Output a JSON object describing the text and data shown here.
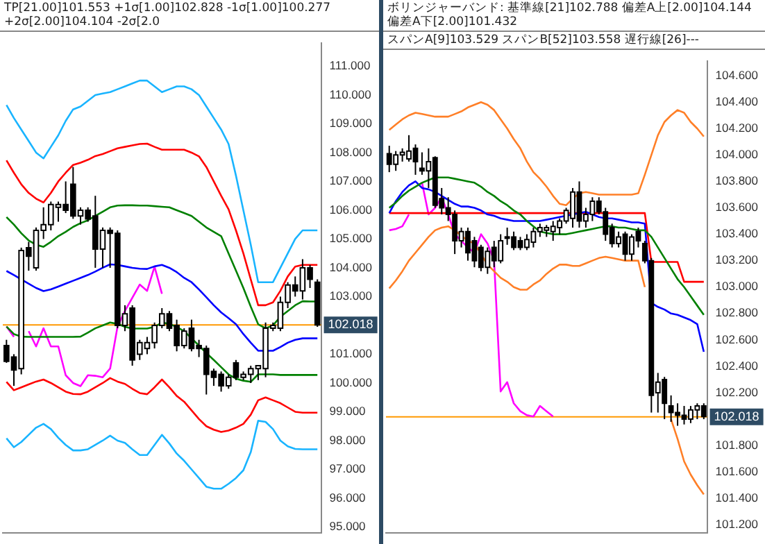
{
  "chart_data": [
    {
      "type": "candlestick",
      "title": "TP[21.00]101.553 +1σ[1.00]102.828 -1σ[1.00]100.277 +2σ[2.00]104.104 -2σ[2.0",
      "tick_labels": "y",
      "grid": false,
      "legend": false,
      "marker": "none",
      "categories": [
        null,
        null,
        null,
        null,
        null,
        null,
        null,
        null,
        null,
        null,
        null,
        null,
        null,
        null,
        null,
        null,
        null,
        null,
        null,
        null,
        null,
        null,
        null,
        null,
        null,
        null,
        null,
        null,
        null,
        null,
        null,
        null,
        null,
        null,
        null,
        null,
        null,
        null,
        null,
        null,
        null,
        null,
        null
      ],
      "ohlc": [
        [
          101.3,
          101.5,
          100.7,
          100.75
        ],
        [
          100.9,
          101.0,
          99.9,
          100.45
        ],
        [
          100.5,
          104.7,
          100.3,
          104.6
        ],
        [
          104.7,
          104.9,
          103.9,
          104.4
        ],
        [
          104.0,
          105.4,
          103.9,
          105.3
        ],
        [
          105.3,
          106.1,
          105.0,
          105.5
        ],
        [
          105.5,
          106.3,
          105.3,
          106.2
        ],
        [
          106.1,
          106.3,
          105.6,
          106.2
        ],
        [
          106.2,
          107.0,
          105.9,
          106.0
        ],
        [
          106.9,
          107.5,
          105.7,
          105.8
        ],
        [
          105.8,
          106.1,
          105.5,
          106.0
        ],
        [
          106.0,
          106.1,
          105.6,
          105.7
        ],
        [
          105.8,
          106.5,
          104.0,
          104.65
        ],
        [
          104.65,
          105.4,
          104.0,
          105.3
        ],
        [
          105.3,
          105.4,
          104.0,
          105.2
        ],
        [
          105.2,
          105.3,
          101.9,
          102.0
        ],
        [
          102.0,
          102.7,
          101.8,
          102.4
        ],
        [
          102.6,
          102.7,
          100.6,
          100.8
        ],
        [
          101.0,
          101.5,
          100.8,
          101.4
        ],
        [
          101.2,
          101.6,
          101.0,
          101.4
        ],
        [
          101.4,
          102.1,
          101.2,
          102.0
        ],
        [
          102.0,
          102.6,
          101.9,
          102.4
        ],
        [
          102.4,
          102.5,
          101.8,
          101.9
        ],
        [
          102.0,
          102.2,
          101.1,
          101.3
        ],
        [
          101.3,
          101.9,
          101.2,
          101.8
        ],
        [
          101.9,
          102.2,
          101.1,
          101.2
        ],
        [
          101.3,
          101.5,
          100.9,
          101.2
        ],
        [
          101.2,
          101.3,
          99.6,
          100.3
        ],
        [
          100.4,
          100.5,
          99.9,
          100.2
        ],
        [
          100.3,
          100.4,
          99.7,
          99.9
        ],
        [
          99.9,
          100.3,
          99.8,
          100.2
        ],
        [
          100.7,
          100.8,
          100.1,
          100.2
        ],
        [
          100.2,
          100.4,
          100.1,
          100.3
        ],
        [
          100.3,
          100.6,
          100.0,
          100.5
        ],
        [
          100.5,
          100.6,
          100.1,
          100.6
        ],
        [
          100.5,
          102.1,
          100.2,
          101.9
        ],
        [
          101.9,
          102.1,
          101.8,
          102.0
        ],
        [
          101.9,
          103.0,
          101.8,
          102.8
        ],
        [
          102.8,
          103.5,
          102.6,
          103.4
        ],
        [
          103.4,
          103.7,
          103.0,
          103.2
        ],
        [
          103.2,
          104.3,
          102.9,
          104.0
        ],
        [
          104.0,
          104.1,
          103.3,
          103.6
        ],
        [
          103.5,
          103.6,
          101.95,
          102.02
        ]
      ],
      "series": [
        {
          "type": "line",
          "color": "#19b4ff",
          "values": [
            109.65,
            109.2,
            108.8,
            108.4,
            108.0,
            107.8,
            108.2,
            108.6,
            109.1,
            109.5,
            109.6,
            109.8,
            110.0,
            110.05,
            110.1,
            110.2,
            110.3,
            110.4,
            110.5,
            110.5,
            110.3,
            110.1,
            110.2,
            110.3,
            110.3,
            110.2,
            110.0,
            109.6,
            109.2,
            108.8,
            108.3,
            107.2,
            106.0,
            104.8,
            103.5,
            103.5,
            103.5,
            104.0,
            104.5,
            105.0,
            105.3,
            105.3,
            105.3
          ]
        },
        {
          "type": "line",
          "color": "#ff0000",
          "values": [
            107.73,
            107.3,
            106.9,
            106.6,
            106.4,
            106.27,
            106.6,
            107.0,
            107.3,
            107.57,
            107.65,
            107.75,
            107.88,
            107.95,
            108.05,
            108.15,
            108.2,
            108.25,
            108.3,
            108.31,
            108.2,
            108.1,
            108.1,
            108.1,
            108.1,
            108.0,
            107.87,
            107.5,
            107.0,
            106.5,
            106.03,
            105.3,
            104.5,
            103.6,
            102.7,
            102.7,
            102.8,
            103.2,
            103.7,
            104.04,
            104.1,
            104.1,
            104.1
          ]
        },
        {
          "type": "line",
          "color": "#008000",
          "values": [
            105.76,
            105.5,
            105.2,
            104.95,
            104.8,
            104.73,
            104.9,
            105.1,
            105.25,
            105.42,
            105.55,
            105.65,
            105.8,
            105.95,
            106.1,
            106.16,
            106.17,
            106.17,
            106.16,
            106.16,
            106.14,
            106.12,
            106.1,
            106.0,
            105.9,
            105.8,
            105.6,
            105.4,
            105.25,
            105.1,
            104.5,
            103.9,
            103.3,
            102.65,
            102.04,
            101.9,
            102.0,
            102.3,
            102.5,
            102.7,
            102.84,
            102.83,
            102.83
          ]
        },
        {
          "type": "line",
          "color": "#0000ff",
          "values": [
            103.89,
            103.75,
            103.6,
            103.45,
            103.3,
            103.19,
            103.25,
            103.35,
            103.45,
            103.55,
            103.65,
            103.75,
            103.87,
            104.0,
            104.12,
            104.1,
            104.05,
            104.0,
            103.97,
            103.96,
            104.05,
            104.1,
            104.0,
            103.85,
            103.65,
            103.5,
            103.25,
            102.98,
            102.7,
            102.45,
            102.25,
            102.04,
            101.7,
            101.4,
            101.12,
            101.12,
            101.12,
            101.25,
            101.4,
            101.5,
            101.55,
            101.55,
            101.55
          ]
        },
        {
          "type": "line",
          "color": "#008000",
          "values": [
            101.96,
            101.7,
            101.61,
            101.6,
            101.6,
            101.6,
            101.6,
            101.6,
            101.6,
            101.6,
            101.61,
            101.75,
            101.9,
            102.0,
            102.1,
            102.05,
            101.95,
            101.89,
            101.89,
            101.89,
            101.95,
            102.1,
            102.05,
            101.95,
            101.8,
            101.55,
            101.3,
            101.04,
            100.8,
            100.55,
            100.3,
            100.15,
            100.08,
            100.04,
            100.3,
            100.3,
            100.3,
            100.28,
            100.28,
            100.28,
            100.28,
            100.28,
            100.28
          ]
        },
        {
          "type": "line",
          "color": "#ff0000",
          "values": [
            100.04,
            99.75,
            99.85,
            99.95,
            100.05,
            100.12,
            100.0,
            99.85,
            99.7,
            99.62,
            99.61,
            99.7,
            99.85,
            100.0,
            100.17,
            100.05,
            99.97,
            99.8,
            99.65,
            99.61,
            99.85,
            100.12,
            99.85,
            99.55,
            99.35,
            99.05,
            98.75,
            98.5,
            98.38,
            98.3,
            98.35,
            98.45,
            98.58,
            98.9,
            99.4,
            99.5,
            99.4,
            99.3,
            99.15,
            99.0,
            98.97,
            98.97,
            98.97
          ]
        },
        {
          "type": "line",
          "color": "#19b4ff",
          "values": [
            98.08,
            97.77,
            97.95,
            98.2,
            98.45,
            98.58,
            98.4,
            98.1,
            97.85,
            97.66,
            97.66,
            97.7,
            97.85,
            98.0,
            98.17,
            98.0,
            97.92,
            97.7,
            97.5,
            97.5,
            97.85,
            98.2,
            97.9,
            97.55,
            97.3,
            97.0,
            96.7,
            96.4,
            96.33,
            96.33,
            96.5,
            96.7,
            96.97,
            97.6,
            98.69,
            98.65,
            98.4,
            98.0,
            97.8,
            97.71,
            97.7,
            97.7,
            97.7
          ]
        },
        {
          "type": "line",
          "color": "#ff00ff",
          "values": [
            101.96,
            101.6,
            null,
            101.8,
            101.27,
            101.9,
            101.27,
            101.27,
            100.27,
            100.0,
            99.89,
            100.27,
            100.25,
            100.2,
            100.5,
            101.96,
            102.5,
            102.96,
            103.42,
            103.2,
            104.04,
            103.1,
            null,
            null,
            null,
            null,
            null,
            null,
            null,
            null,
            null,
            null,
            null,
            null,
            null,
            null,
            null,
            null,
            null,
            null,
            null,
            null,
            null
          ]
        }
      ],
      "ylim": [
        94.8,
        111.8
      ],
      "yticks": [
        {
          "value": 95,
          "label": "95.000"
        },
        {
          "value": 96,
          "label": "96.000"
        },
        {
          "value": 97,
          "label": "97.000"
        },
        {
          "value": 98,
          "label": "98.000"
        },
        {
          "value": 99,
          "label": "99.000"
        },
        {
          "value": 100,
          "label": "100.000"
        },
        {
          "value": 101,
          "label": "101.000"
        },
        {
          "value": 103,
          "label": "103.000"
        },
        {
          "value": 104,
          "label": "104.000"
        },
        {
          "value": 105,
          "label": "105.000"
        },
        {
          "value": 106,
          "label": "106.000"
        },
        {
          "value": 107,
          "label": "107.000"
        },
        {
          "value": 108,
          "label": "108.000"
        },
        {
          "value": 109,
          "label": "109.000"
        },
        {
          "value": 110,
          "label": "110.000"
        },
        {
          "value": 111,
          "label": "111.000"
        }
      ],
      "ref_lines": [
        {
          "axis": "y",
          "value": 102.018,
          "label": "102.018",
          "color": "#ff9900"
        }
      ]
    },
    {
      "type": "candlestick",
      "title": "ボリンジャーバンド: 基準線[21]102.788 偏差A上[2.00]104.144 偏差A下[2.00]101.432",
      "subtitle": "スパンA[9]103.529 スパンB[52]103.558 遅行線[26]---",
      "tick_labels": "y",
      "grid": false,
      "legend": false,
      "marker": "none",
      "categories": [
        null,
        null,
        null,
        null,
        null,
        null,
        null,
        null,
        null,
        null,
        null,
        null,
        null,
        null,
        null,
        null,
        null,
        null,
        null,
        null,
        null,
        null,
        null,
        null,
        null,
        null,
        null,
        null,
        null,
        null,
        null,
        null,
        null,
        null,
        null,
        null,
        null,
        null,
        null,
        null,
        null,
        null,
        null,
        null,
        null,
        null,
        null,
        null,
        null
      ],
      "ohlc": [
        [
          104.01,
          104.07,
          103.87,
          103.93
        ],
        [
          103.93,
          104.03,
          103.88,
          104.0
        ],
        [
          104.0,
          104.05,
          103.95,
          104.02
        ],
        [
          103.97,
          104.15,
          103.95,
          104.03
        ],
        [
          104.05,
          104.08,
          103.85,
          103.95
        ],
        [
          103.9,
          104.02,
          103.85,
          103.88
        ],
        [
          103.88,
          104.05,
          103.75,
          103.95
        ],
        [
          103.98,
          103.99,
          103.6,
          103.62
        ],
        [
          103.67,
          103.75,
          103.55,
          103.6
        ],
        [
          103.6,
          103.68,
          103.5,
          103.55
        ],
        [
          103.55,
          103.58,
          103.25,
          103.35
        ],
        [
          103.35,
          103.45,
          103.3,
          103.42
        ],
        [
          103.42,
          103.45,
          103.2,
          103.26
        ],
        [
          103.35,
          103.38,
          103.15,
          103.2
        ],
        [
          103.3,
          103.32,
          103.12,
          103.15
        ],
        [
          103.15,
          103.3,
          103.1,
          103.27
        ],
        [
          103.3,
          103.35,
          103.15,
          103.2
        ],
        [
          103.2,
          103.4,
          103.18,
          103.35
        ],
        [
          103.37,
          103.45,
          103.32,
          103.38
        ],
        [
          103.38,
          103.42,
          103.28,
          103.3
        ],
        [
          103.35,
          103.38,
          103.28,
          103.3
        ],
        [
          103.3,
          103.4,
          103.28,
          103.36
        ],
        [
          103.34,
          103.45,
          103.3,
          103.42
        ],
        [
          103.42,
          103.48,
          103.38,
          103.45
        ],
        [
          103.43,
          103.47,
          103.38,
          103.45
        ],
        [
          103.42,
          103.5,
          103.35,
          103.46
        ],
        [
          103.45,
          103.52,
          103.4,
          103.5
        ],
        [
          103.5,
          103.6,
          103.48,
          103.58
        ],
        [
          103.52,
          103.75,
          103.45,
          103.72
        ],
        [
          103.72,
          103.8,
          103.45,
          103.5
        ],
        [
          103.5,
          103.6,
          103.45,
          103.55
        ],
        [
          103.55,
          103.68,
          103.5,
          103.65
        ],
        [
          103.65,
          103.68,
          103.55,
          103.57
        ],
        [
          103.57,
          103.6,
          103.35,
          103.4
        ],
        [
          103.45,
          103.48,
          103.3,
          103.33
        ],
        [
          103.33,
          103.42,
          103.3,
          103.38
        ],
        [
          103.4,
          103.42,
          103.2,
          103.25
        ],
        [
          103.25,
          103.4,
          103.2,
          103.38
        ],
        [
          103.42,
          103.45,
          103.3,
          103.35
        ],
        [
          103.33,
          103.35,
          103.18,
          103.2
        ],
        [
          103.2,
          103.22,
          102.05,
          102.18
        ],
        [
          102.2,
          102.35,
          102.05,
          102.28
        ],
        [
          102.3,
          102.32,
          102.0,
          102.12
        ],
        [
          102.1,
          102.18,
          101.98,
          102.05
        ],
        [
          102.05,
          102.12,
          101.95,
          102.03
        ],
        [
          102.03,
          102.1,
          101.96,
          102.0
        ],
        [
          102.0,
          102.1,
          101.97,
          102.07
        ],
        [
          102.07,
          102.12,
          102.0,
          102.1
        ],
        [
          102.1,
          102.12,
          102.0,
          102.02
        ]
      ],
      "series": [
        {
          "type": "line",
          "color": "#ff7f27",
          "values": [
            104.19,
            104.23,
            104.27,
            104.3,
            104.32,
            104.31,
            104.3,
            104.29,
            104.29,
            104.29,
            104.31,
            104.33,
            104.36,
            104.38,
            104.4,
            104.38,
            104.34,
            104.27,
            104.2,
            104.12,
            104.05,
            103.95,
            103.87,
            103.82,
            103.76,
            103.69,
            103.63,
            103.62,
            103.67,
            103.71,
            103.72,
            103.71,
            103.7,
            103.7,
            103.7,
            103.7,
            103.7,
            103.7,
            103.71,
            103.85,
            104.0,
            104.15,
            104.25,
            104.3,
            104.34,
            104.32,
            104.25,
            104.2,
            104.14
          ]
        },
        {
          "type": "line",
          "color": "#ff7f27",
          "values": [
            102.99,
            103.05,
            103.12,
            103.2,
            103.26,
            103.32,
            103.38,
            103.43,
            103.45,
            103.46,
            103.43,
            103.39,
            103.35,
            103.33,
            103.25,
            103.17,
            103.12,
            103.07,
            103.04,
            103.0,
            102.98,
            102.98,
            103.02,
            103.05,
            103.1,
            103.14,
            103.17,
            103.17,
            103.16,
            103.16,
            103.18,
            103.2,
            103.22,
            103.23,
            103.22,
            103.21,
            103.2,
            103.2,
            103.2,
            103.0,
            null,
            null,
            null,
            102.0,
            101.85,
            101.68,
            101.58,
            101.5,
            101.43
          ]
        },
        {
          "type": "line",
          "color": "#008000",
          "values": [
            103.6,
            103.64,
            103.69,
            103.73,
            103.76,
            103.79,
            103.81,
            103.83,
            103.83,
            103.83,
            103.82,
            103.81,
            103.8,
            103.79,
            103.76,
            103.72,
            103.69,
            103.65,
            103.62,
            103.58,
            103.55,
            103.5,
            103.46,
            103.42,
            103.41,
            103.4,
            103.4,
            103.4,
            103.41,
            103.42,
            103.43,
            103.44,
            103.45,
            103.46,
            103.46,
            103.45,
            103.45,
            103.44,
            103.43,
            103.43,
            103.38,
            103.3,
            103.22,
            103.14,
            103.06,
            103.0,
            102.93,
            102.86,
            102.79
          ]
        },
        {
          "type": "line",
          "color": "#0000ff",
          "values": [
            103.56,
            103.65,
            103.72,
            103.77,
            103.8,
            103.75,
            103.74,
            103.72,
            103.69,
            103.66,
            103.63,
            103.61,
            103.61,
            103.6,
            103.58,
            103.55,
            103.54,
            103.52,
            103.51,
            103.5,
            103.5,
            103.5,
            103.5,
            103.5,
            103.51,
            103.52,
            103.53,
            103.54,
            103.55,
            103.56,
            103.57,
            103.55,
            103.53,
            103.52,
            103.52,
            103.51,
            103.5,
            103.49,
            103.49,
            103.48,
            102.88,
            102.85,
            102.83,
            102.8,
            102.79,
            102.77,
            102.75,
            102.72,
            102.51
          ]
        },
        {
          "type": "line",
          "color": "#ff0000",
          "values": [
            103.56,
            103.56,
            103.56,
            103.56,
            103.56,
            103.56,
            103.56,
            103.56,
            103.56,
            103.56,
            103.56,
            103.56,
            103.56,
            103.56,
            103.56,
            103.56,
            103.56,
            103.56,
            103.56,
            103.56,
            103.56,
            103.56,
            103.56,
            103.56,
            103.56,
            103.56,
            103.56,
            103.56,
            103.56,
            103.56,
            103.56,
            103.56,
            103.56,
            103.56,
            103.56,
            103.56,
            103.56,
            103.56,
            103.56,
            103.56,
            103.19,
            103.19,
            103.19,
            103.19,
            103.19,
            103.04,
            103.04,
            103.04,
            103.04
          ]
        },
        {
          "type": "line",
          "color": "#ff00ff",
          "values": [
            103.43,
            103.44,
            103.46,
            103.55,
            null,
            103.79,
            103.55,
            103.6,
            103.68,
            103.55,
            103.4,
            103.35,
            103.3,
            103.26,
            103.4,
            103.33,
            103.2,
            102.21,
            102.28,
            102.12,
            102.06,
            102.03,
            102.02,
            102.1,
            102.06,
            102.02,
            null,
            null,
            null,
            null,
            null,
            null,
            null,
            null,
            null,
            null,
            null,
            null,
            null,
            null,
            null,
            null,
            null,
            null,
            null,
            null,
            null,
            null,
            null
          ]
        }
      ],
      "ylim": [
        101.14,
        104.71
      ],
      "yticks": [
        {
          "value": 101.2,
          "label": "101.200"
        },
        {
          "value": 101.4,
          "label": "101.400"
        },
        {
          "value": 101.6,
          "label": "101.600"
        },
        {
          "value": 101.8,
          "label": "101.800"
        },
        {
          "value": 102.2,
          "label": "102.200"
        },
        {
          "value": 102.4,
          "label": "102.400"
        },
        {
          "value": 102.6,
          "label": "102.600"
        },
        {
          "value": 102.8,
          "label": "102.800"
        },
        {
          "value": 103.0,
          "label": "103.000"
        },
        {
          "value": 103.2,
          "label": "103.200"
        },
        {
          "value": 103.4,
          "label": "103.400"
        },
        {
          "value": 103.6,
          "label": "103.600"
        },
        {
          "value": 103.8,
          "label": "103.800"
        },
        {
          "value": 104.0,
          "label": "104.000"
        },
        {
          "value": 104.2,
          "label": "104.200"
        },
        {
          "value": 104.4,
          "label": "104.400"
        },
        {
          "value": 104.6,
          "label": "104.600"
        }
      ],
      "ref_lines": [
        {
          "axis": "y",
          "value": 102.018,
          "label": "102.018",
          "color": "#ff9900"
        }
      ]
    }
  ]
}
